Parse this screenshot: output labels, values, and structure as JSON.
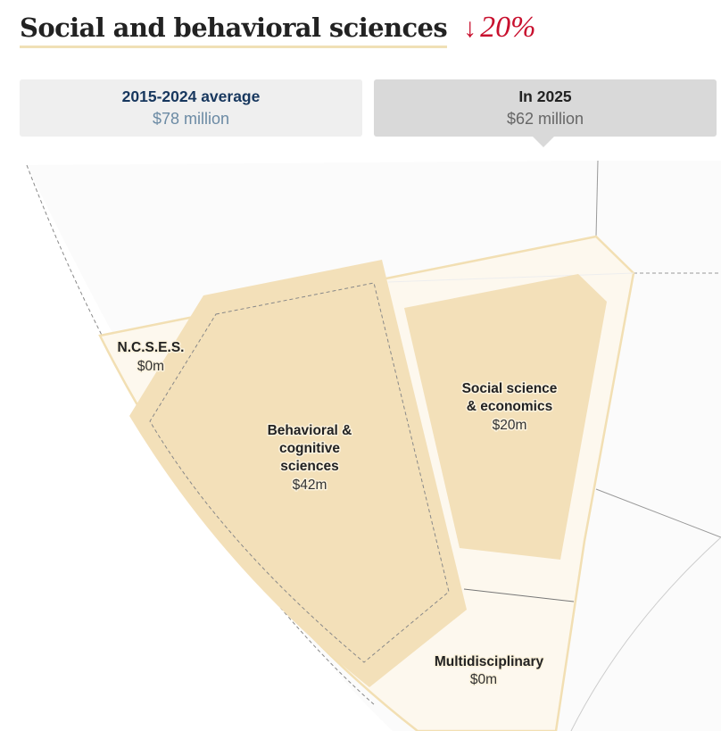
{
  "header": {
    "title": "Social and behavioral sciences",
    "change_arrow": "↓",
    "change": "20%"
  },
  "tabs": [
    {
      "label": "2015-2024 average",
      "value": "$78 million"
    },
    {
      "label": "In 2025",
      "value": "$62 million"
    }
  ],
  "colors": {
    "accent_red": "#c8102e",
    "cell_fill": "#f3e0b9",
    "cell_bg": "#fdf8ee",
    "border": "#f2dfb3"
  },
  "chart_data": {
    "type": "voronoi-treemap",
    "units": "USD millions",
    "selected_period": "In 2025",
    "cells": [
      {
        "name": "N.C.S.E.S.",
        "label_lines": [
          "N.C.S.E.S."
        ],
        "value_label": "$0m",
        "value": 0
      },
      {
        "name": "Behavioral & cognitive sciences",
        "label_lines": [
          "Behavioral &",
          "cognitive",
          "sciences"
        ],
        "value_label": "$42m",
        "value": 42
      },
      {
        "name": "Social science & economics",
        "label_lines": [
          "Social science",
          "& economics"
        ],
        "value_label": "$20m",
        "value": 20
      },
      {
        "name": "Multidisciplinary",
        "label_lines": [
          "Multidisciplinary"
        ],
        "value_label": "$0m",
        "value": 0
      }
    ]
  }
}
